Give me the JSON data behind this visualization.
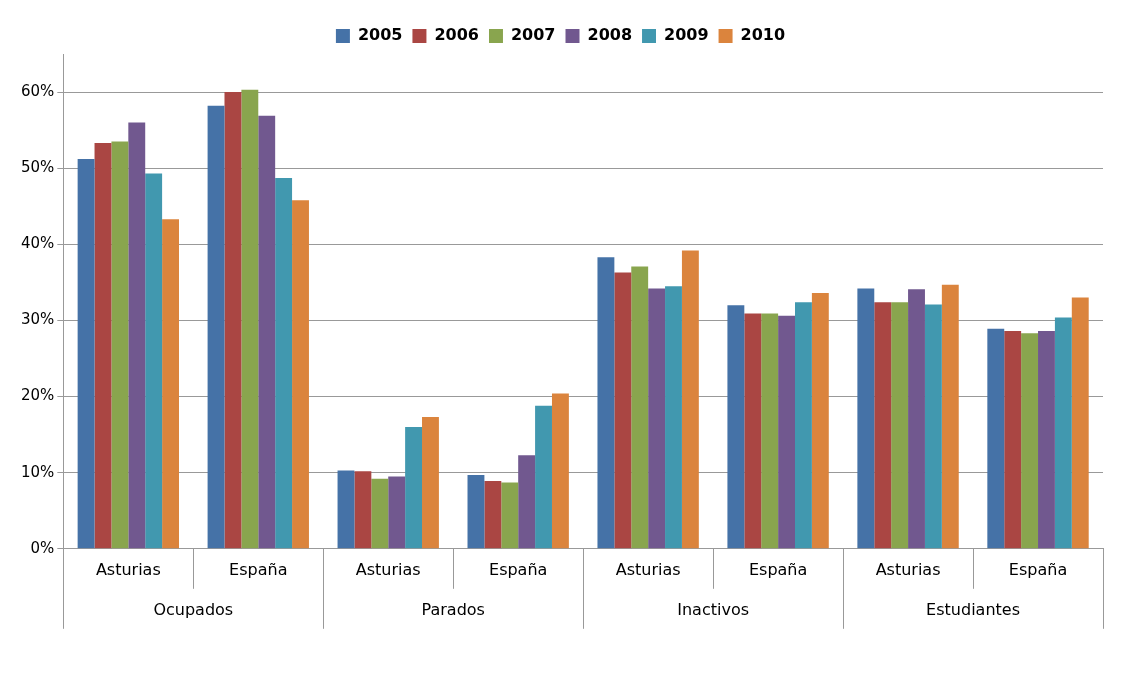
{
  "chart_data": {
    "type": "bar",
    "categories": [
      "Asturias",
      "España",
      "Asturias",
      "España",
      "Asturias",
      "España",
      "Asturias",
      "España"
    ],
    "annotations": [
      "Ocupados",
      "Parados",
      "Inactivos",
      "Estudiantes"
    ],
    "series": [
      {
        "name": "2005",
        "color": "#4572a7",
        "values": [
          51.2,
          58.2,
          10.3,
          9.7,
          38.3,
          32.0,
          34.2,
          28.9
        ]
      },
      {
        "name": "2006",
        "color": "#aa4643",
        "values": [
          53.3,
          60.0,
          10.2,
          8.9,
          36.3,
          30.9,
          32.4,
          28.6
        ]
      },
      {
        "name": "2007",
        "color": "#89a54e",
        "values": [
          53.5,
          60.3,
          9.2,
          8.7,
          37.1,
          30.9,
          32.4,
          28.3
        ]
      },
      {
        "name": "2008",
        "color": "#71588f",
        "values": [
          56.0,
          56.9,
          9.5,
          12.3,
          34.2,
          30.6,
          34.1,
          28.6
        ]
      },
      {
        "name": "2009",
        "color": "#4198af",
        "values": [
          49.3,
          48.7,
          16.0,
          18.8,
          34.5,
          32.4,
          32.1,
          30.4
        ]
      },
      {
        "name": "2010",
        "color": "#db843d",
        "values": [
          43.3,
          45.8,
          17.3,
          20.4,
          39.2,
          33.6,
          34.7,
          33.0
        ]
      }
    ],
    "ylim": [
      0,
      65
    ],
    "yticks": [
      {
        "value": 0,
        "label": "0%"
      },
      {
        "value": 10,
        "label": "10%"
      },
      {
        "value": 20,
        "label": "20%"
      },
      {
        "value": 30,
        "label": "30%"
      },
      {
        "value": 40,
        "label": "40%"
      },
      {
        "value": 50,
        "label": "50%"
      },
      {
        "value": 60,
        "label": "60%"
      }
    ],
    "grid": "y",
    "legend": "top"
  }
}
